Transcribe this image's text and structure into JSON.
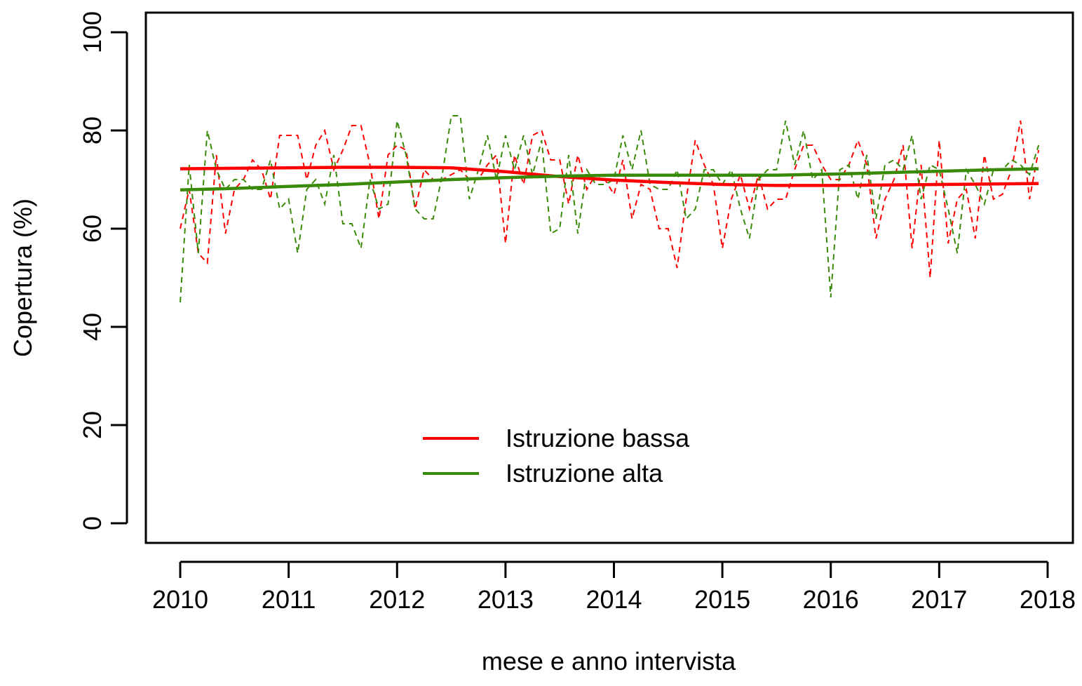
{
  "chart_data": {
    "type": "line",
    "x_label": "mese e anno intervista",
    "y_label": "Copertura (%)",
    "x": [
      2010,
      2010.083,
      2010.167,
      2010.25,
      2010.333,
      2010.417,
      2010.5,
      2010.583,
      2010.667,
      2010.75,
      2010.833,
      2010.917,
      2011,
      2011.083,
      2011.167,
      2011.25,
      2011.333,
      2011.417,
      2011.5,
      2011.583,
      2011.667,
      2011.75,
      2011.833,
      2011.917,
      2012,
      2012.083,
      2012.167,
      2012.25,
      2012.333,
      2012.417,
      2012.5,
      2012.583,
      2012.667,
      2012.75,
      2012.833,
      2012.917,
      2013,
      2013.083,
      2013.167,
      2013.25,
      2013.333,
      2013.417,
      2013.5,
      2013.583,
      2013.667,
      2013.75,
      2013.833,
      2013.917,
      2014,
      2014.083,
      2014.167,
      2014.25,
      2014.333,
      2014.417,
      2014.5,
      2014.583,
      2014.667,
      2014.75,
      2014.833,
      2014.917,
      2015,
      2015.083,
      2015.167,
      2015.25,
      2015.333,
      2015.417,
      2015.5,
      2015.583,
      2015.667,
      2015.75,
      2015.833,
      2015.917,
      2016,
      2016.083,
      2016.167,
      2016.25,
      2016.333,
      2016.417,
      2016.5,
      2016.583,
      2016.667,
      2016.75,
      2016.833,
      2016.917,
      2017,
      2017.083,
      2017.167,
      2017.25,
      2017.333,
      2017.417,
      2017.5,
      2017.583,
      2017.667,
      2017.75,
      2017.833,
      2017.917
    ],
    "trend_x": [
      2010,
      2010.5,
      2011,
      2011.5,
      2012,
      2012.5,
      2013,
      2013.5,
      2014,
      2014.5,
      2015,
      2015.5,
      2016,
      2016.5,
      2017,
      2017.5,
      2017.917
    ],
    "series": [
      {
        "name": "Istruzione bassa",
        "color": "#ff0000",
        "values": [
          60,
          68,
          55,
          53,
          75,
          59,
          68,
          70,
          74,
          72,
          66,
          79,
          79,
          79,
          70,
          77,
          80,
          72,
          76,
          81,
          81,
          73,
          62,
          75,
          77,
          76,
          64,
          72,
          70,
          70,
          71,
          72,
          70,
          70,
          73,
          75,
          57,
          75,
          69,
          79,
          80,
          74,
          74,
          65,
          75,
          68,
          71,
          70,
          67,
          74,
          62,
          69,
          68,
          60,
          60,
          52,
          66,
          78,
          73,
          69,
          56,
          66,
          71,
          64,
          71,
          64,
          66,
          66,
          72,
          77,
          77,
          73,
          70,
          70,
          73,
          78,
          73,
          58,
          66,
          70,
          77,
          56,
          73,
          50,
          78,
          57,
          66,
          68,
          58,
          75,
          66,
          67,
          72,
          82,
          66,
          76
        ],
        "trend": [
          72.2,
          72.3,
          72.4,
          72.5,
          72.5,
          72.4,
          71.6,
          70.6,
          69.9,
          69.4,
          69.0,
          68.8,
          68.8,
          68.9,
          69.0,
          69.1,
          69.2
        ]
      },
      {
        "name": "Istruzione alta",
        "color": "#3a8a0a",
        "values": [
          45,
          73,
          55,
          80,
          72,
          68,
          70,
          70,
          68,
          68,
          74,
          64,
          66,
          55,
          68,
          70,
          65,
          75,
          61,
          61,
          56,
          70,
          64,
          65,
          82,
          75,
          64,
          62,
          62,
          71,
          83,
          83,
          66,
          72,
          79,
          70,
          79,
          72,
          79,
          71,
          78,
          59,
          60,
          75,
          59,
          72,
          69,
          69,
          70,
          79,
          72,
          80,
          69,
          68,
          68,
          72,
          62,
          64,
          72,
          72,
          69,
          72,
          64,
          58,
          70,
          72,
          72,
          82,
          73,
          80,
          70,
          72,
          46,
          72,
          73,
          66,
          75,
          62,
          73,
          74,
          72,
          79,
          66,
          73,
          72,
          64,
          55,
          72,
          69,
          65,
          72,
          72,
          74,
          73,
          71,
          77
        ],
        "trend": [
          67.9,
          68.2,
          68.6,
          69.0,
          69.5,
          70.0,
          70.4,
          70.7,
          70.9,
          70.9,
          70.9,
          70.9,
          71.1,
          71.4,
          71.7,
          72.0,
          72.2
        ]
      }
    ],
    "xlim": [
      2009.683,
      2018.233
    ],
    "ylim": [
      -4,
      104
    ],
    "xticks": [
      2010,
      2011,
      2012,
      2013,
      2014,
      2015,
      2016,
      2017,
      2018
    ],
    "yticks": [
      0,
      20,
      40,
      60,
      80,
      100
    ],
    "legend": "bottom-center"
  }
}
